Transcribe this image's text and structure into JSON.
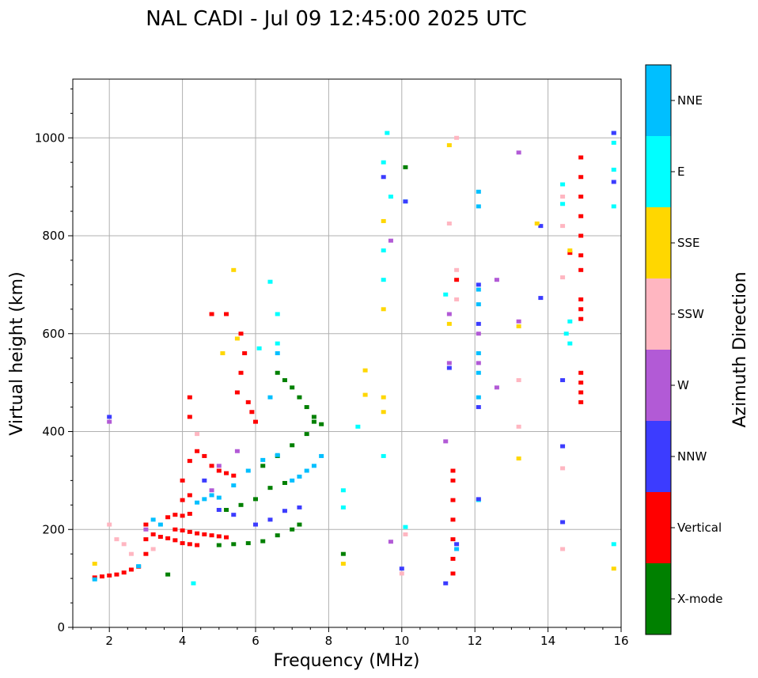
{
  "chart_data": {
    "type": "scatter",
    "title": "NAL CADI - Jul 09 12:45:00 2025 UTC",
    "xlabel": "Frequency (MHz)",
    "ylabel": "Virtual height (km)",
    "xlim": [
      1,
      16
    ],
    "ylim": [
      0,
      1120
    ],
    "xticks": [
      2,
      4,
      6,
      8,
      10,
      12,
      14,
      16
    ],
    "yticks": [
      0,
      200,
      400,
      600,
      800,
      1000
    ],
    "grid": true,
    "colorbar": {
      "label": "Azimuth Direction",
      "entries": [
        {
          "name": "X-mode",
          "color": "#008000"
        },
        {
          "name": "Vertical",
          "color": "#ff0000"
        },
        {
          "name": "NNW",
          "color": "#3c3cff"
        },
        {
          "name": "W",
          "color": "#b25ad6"
        },
        {
          "name": "SSW",
          "color": "#ffb6c1"
        },
        {
          "name": "SSE",
          "color": "#ffd700"
        },
        {
          "name": "E",
          "color": "#00ffff"
        },
        {
          "name": "NNE",
          "color": "#00bfff"
        }
      ]
    },
    "series": [
      {
        "name": "Vertical",
        "points": [
          [
            1.6,
            102
          ],
          [
            1.8,
            104
          ],
          [
            2.0,
            106
          ],
          [
            2.2,
            108
          ],
          [
            2.4,
            112
          ],
          [
            2.6,
            118
          ],
          [
            2.8,
            124
          ],
          [
            3.0,
            150
          ],
          [
            3.0,
            180
          ],
          [
            3.0,
            210
          ],
          [
            3.2,
            190
          ],
          [
            3.4,
            185
          ],
          [
            3.6,
            182
          ],
          [
            3.8,
            178
          ],
          [
            4.0,
            172
          ],
          [
            4.2,
            170
          ],
          [
            4.4,
            168
          ],
          [
            3.8,
            200
          ],
          [
            4.0,
            198
          ],
          [
            4.2,
            195
          ],
          [
            4.4,
            192
          ],
          [
            4.6,
            190
          ],
          [
            4.8,
            188
          ],
          [
            5.0,
            186
          ],
          [
            5.2,
            184
          ],
          [
            3.6,
            225
          ],
          [
            3.8,
            230
          ],
          [
            4.0,
            228
          ],
          [
            4.2,
            232
          ],
          [
            4.0,
            260
          ],
          [
            4.2,
            270
          ],
          [
            4.0,
            300
          ],
          [
            4.2,
            340
          ],
          [
            4.4,
            360
          ],
          [
            4.6,
            350
          ],
          [
            4.8,
            330
          ],
          [
            5.0,
            320
          ],
          [
            5.2,
            315
          ],
          [
            5.4,
            310
          ],
          [
            4.2,
            430
          ],
          [
            4.2,
            470
          ],
          [
            4.8,
            640
          ],
          [
            5.2,
            640
          ],
          [
            5.6,
            600
          ],
          [
            5.7,
            560
          ],
          [
            5.6,
            520
          ],
          [
            5.5,
            480
          ],
          [
            5.8,
            460
          ],
          [
            5.9,
            440
          ],
          [
            6.0,
            420
          ],
          [
            11.4,
            110
          ],
          [
            11.4,
            140
          ],
          [
            11.4,
            180
          ],
          [
            11.4,
            220
          ],
          [
            11.4,
            260
          ],
          [
            11.4,
            300
          ],
          [
            11.4,
            320
          ],
          [
            11.5,
            710
          ],
          [
            14.9,
            460
          ],
          [
            14.9,
            480
          ],
          [
            14.9,
            500
          ],
          [
            14.9,
            520
          ],
          [
            14.9,
            630
          ],
          [
            14.9,
            650
          ],
          [
            14.9,
            670
          ],
          [
            14.9,
            730
          ],
          [
            14.9,
            760
          ],
          [
            14.9,
            800
          ],
          [
            14.9,
            840
          ],
          [
            14.9,
            880
          ],
          [
            14.9,
            920
          ],
          [
            14.9,
            960
          ],
          [
            14.6,
            765
          ]
        ]
      },
      {
        "name": "X-mode",
        "points": [
          [
            5.0,
            168
          ],
          [
            5.4,
            170
          ],
          [
            5.8,
            172
          ],
          [
            6.2,
            176
          ],
          [
            6.6,
            188
          ],
          [
            7.0,
            200
          ],
          [
            7.2,
            210
          ],
          [
            5.2,
            240
          ],
          [
            5.6,
            250
          ],
          [
            6.0,
            262
          ],
          [
            6.4,
            285
          ],
          [
            6.8,
            295
          ],
          [
            6.2,
            330
          ],
          [
            6.6,
            350
          ],
          [
            7.0,
            372
          ],
          [
            7.4,
            395
          ],
          [
            7.6,
            420
          ],
          [
            6.6,
            520
          ],
          [
            6.8,
            505
          ],
          [
            7.0,
            490
          ],
          [
            7.2,
            470
          ],
          [
            7.4,
            450
          ],
          [
            7.6,
            430
          ],
          [
            7.8,
            415
          ],
          [
            8.4,
            150
          ],
          [
            3.6,
            108
          ],
          [
            10.1,
            940
          ]
        ]
      },
      {
        "name": "NNE",
        "points": [
          [
            1.6,
            98
          ],
          [
            2.8,
            125
          ],
          [
            4.4,
            255
          ],
          [
            4.6,
            262
          ],
          [
            4.8,
            270
          ],
          [
            5.0,
            265
          ],
          [
            5.4,
            290
          ],
          [
            5.8,
            320
          ],
          [
            6.2,
            342
          ],
          [
            6.6,
            352
          ],
          [
            6.4,
            470
          ],
          [
            6.6,
            560
          ],
          [
            7.0,
            300
          ],
          [
            7.2,
            308
          ],
          [
            7.4,
            320
          ],
          [
            7.6,
            330
          ],
          [
            7.8,
            350
          ],
          [
            3.4,
            210
          ],
          [
            3.2,
            220
          ],
          [
            11.5,
            160
          ],
          [
            12.1,
            470
          ],
          [
            12.1,
            520
          ],
          [
            12.1,
            560
          ],
          [
            12.1,
            660
          ],
          [
            12.1,
            690
          ],
          [
            12.1,
            860
          ],
          [
            12.1,
            890
          ],
          [
            15.8,
            1010
          ]
        ]
      },
      {
        "name": "E",
        "points": [
          [
            8.4,
            280
          ],
          [
            8.4,
            245
          ],
          [
            8.8,
            410
          ],
          [
            9.5,
            350
          ],
          [
            9.5,
            710
          ],
          [
            9.5,
            770
          ],
          [
            9.5,
            950
          ],
          [
            9.6,
            1010
          ],
          [
            9.7,
            880
          ],
          [
            10.1,
            205
          ],
          [
            10.1,
            870
          ],
          [
            11.2,
            680
          ],
          [
            12.1,
            260
          ],
          [
            14.5,
            600
          ],
          [
            14.6,
            580
          ],
          [
            14.6,
            625
          ],
          [
            14.4,
            865
          ],
          [
            14.4,
            905
          ],
          [
            15.8,
            170
          ],
          [
            15.8,
            860
          ],
          [
            15.8,
            935
          ],
          [
            15.8,
            990
          ],
          [
            6.6,
            640
          ],
          [
            6.4,
            706
          ],
          [
            4.3,
            90
          ],
          [
            6.6,
            580
          ],
          [
            6.1,
            570
          ]
        ]
      },
      {
        "name": "NNW",
        "points": [
          [
            2.0,
            430
          ],
          [
            4.6,
            300
          ],
          [
            5.0,
            240
          ],
          [
            5.4,
            230
          ],
          [
            6.0,
            210
          ],
          [
            6.4,
            220
          ],
          [
            6.8,
            238
          ],
          [
            7.2,
            245
          ],
          [
            9.5,
            920
          ],
          [
            10.0,
            120
          ],
          [
            10.1,
            870
          ],
          [
            11.2,
            90
          ],
          [
            11.3,
            530
          ],
          [
            11.5,
            170
          ],
          [
            12.1,
            450
          ],
          [
            12.1,
            620
          ],
          [
            12.1,
            700
          ],
          [
            13.8,
            820
          ],
          [
            13.8,
            673
          ],
          [
            14.4,
            215
          ],
          [
            14.4,
            370
          ],
          [
            14.4,
            505
          ],
          [
            15.8,
            910
          ],
          [
            15.8,
            1010
          ],
          [
            12.1,
            262
          ]
        ]
      },
      {
        "name": "W",
        "points": [
          [
            2.0,
            420
          ],
          [
            3.0,
            200
          ],
          [
            5.0,
            330
          ],
          [
            5.5,
            360
          ],
          [
            9.7,
            790
          ],
          [
            9.7,
            175
          ],
          [
            11.2,
            380
          ],
          [
            11.3,
            640
          ],
          [
            11.3,
            540
          ],
          [
            12.1,
            540
          ],
          [
            12.1,
            600
          ],
          [
            12.6,
            490
          ],
          [
            12.6,
            710
          ],
          [
            13.2,
            625
          ],
          [
            13.2,
            970
          ],
          [
            4.8,
            280
          ]
        ]
      },
      {
        "name": "SSW",
        "points": [
          [
            2.2,
            180
          ],
          [
            2.4,
            170
          ],
          [
            2.6,
            150
          ],
          [
            2.0,
            210
          ],
          [
            4.4,
            395
          ],
          [
            3.2,
            160
          ],
          [
            10.1,
            190
          ],
          [
            10.0,
            110
          ],
          [
            11.3,
            825
          ],
          [
            11.5,
            670
          ],
          [
            11.5,
            730
          ],
          [
            13.2,
            410
          ],
          [
            13.2,
            505
          ],
          [
            14.4,
            160
          ],
          [
            14.4,
            325
          ],
          [
            14.4,
            715
          ],
          [
            14.4,
            820
          ],
          [
            14.4,
            880
          ],
          [
            11.5,
            1000
          ]
        ]
      },
      {
        "name": "SSE",
        "points": [
          [
            1.6,
            130
          ],
          [
            5.4,
            730
          ],
          [
            5.5,
            590
          ],
          [
            5.1,
            560
          ],
          [
            8.4,
            130
          ],
          [
            9.0,
            475
          ],
          [
            9.0,
            525
          ],
          [
            9.5,
            440
          ],
          [
            9.5,
            470
          ],
          [
            9.5,
            650
          ],
          [
            9.5,
            830
          ],
          [
            11.3,
            620
          ],
          [
            11.3,
            985
          ],
          [
            13.2,
            615
          ],
          [
            13.2,
            345
          ],
          [
            13.7,
            825
          ],
          [
            15.8,
            120
          ],
          [
            14.6,
            770
          ]
        ]
      }
    ]
  }
}
